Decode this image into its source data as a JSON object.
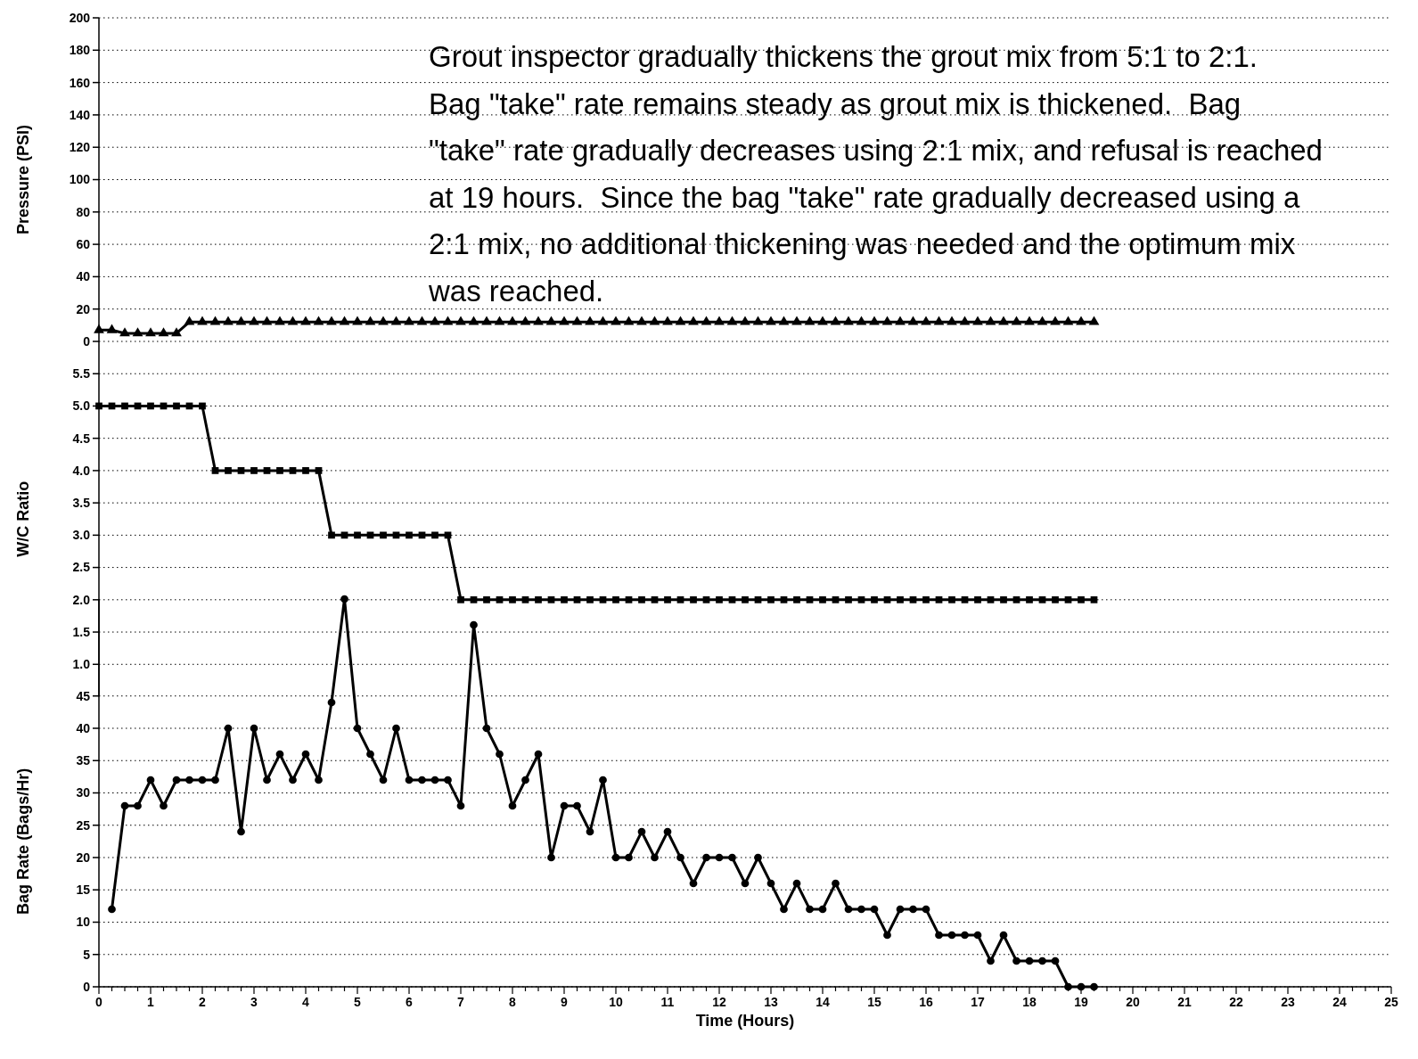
{
  "chart_data": [
    {
      "type": "line",
      "ylabel": "Pressure (PSI)",
      "xlim": [
        0,
        25
      ],
      "ylim": [
        0,
        200
      ],
      "yticks": [
        0,
        20,
        40,
        60,
        80,
        100,
        120,
        140,
        160,
        180,
        200
      ],
      "grid": "y",
      "marker": "triangle",
      "tick_labels": "y",
      "annotations": [
        "Grout inspector gradually thickens the grout mix from 5:1 to 2:1.  Bag \"take\" rate remains steady as grout mix is thickened.  Bag \"take\" rate gradually decreases using 2:1 mix, and refusal is reached at 19 hours.  Since the bag \"take\" rate gradually decreased using a 2:1 mix, no additional thickening was needed and the optimum mix was reached."
      ],
      "x": [
        0,
        0.25,
        0.5,
        0.75,
        1,
        1.25,
        1.5,
        1.75,
        2,
        2.25,
        2.5,
        2.75,
        3,
        3.25,
        3.5,
        3.75,
        4,
        4.25,
        4.5,
        4.75,
        5,
        5.25,
        5.5,
        5.75,
        6,
        6.25,
        6.5,
        6.75,
        7,
        7.25,
        7.5,
        7.75,
        8,
        8.25,
        8.5,
        8.75,
        9,
        9.25,
        9.5,
        9.75,
        10,
        10.25,
        10.5,
        10.75,
        11,
        11.25,
        11.5,
        11.75,
        12,
        12.25,
        12.5,
        12.75,
        13,
        13.25,
        13.5,
        13.75,
        14,
        14.25,
        14.5,
        14.75,
        15,
        15.25,
        15.5,
        15.75,
        16,
        16.25,
        16.5,
        16.75,
        17,
        17.25,
        17.5,
        17.75,
        18,
        18.25,
        18.5,
        18.75,
        19,
        19.25
      ],
      "series": [
        {
          "color": "#000000",
          "values": [
            7,
            7,
            5,
            5,
            5,
            5,
            5,
            12,
            12,
            12,
            12,
            12,
            12,
            12,
            12,
            12,
            12,
            12,
            12,
            12,
            12,
            12,
            12,
            12,
            12,
            12,
            12,
            12,
            12,
            12,
            12,
            12,
            12,
            12,
            12,
            12,
            12,
            12,
            12,
            12,
            12,
            12,
            12,
            12,
            12,
            12,
            12,
            12,
            12,
            12,
            12,
            12,
            12,
            12,
            12,
            12,
            12,
            12,
            12,
            12,
            12,
            12,
            12,
            12,
            12,
            12,
            12,
            12,
            12,
            12,
            12,
            12,
            12,
            12,
            12,
            12,
            12,
            12
          ]
        }
      ]
    },
    {
      "type": "line",
      "ylabel": "W/C Ratio",
      "xlim": [
        0,
        25
      ],
      "ylim": [
        0.5,
        6
      ],
      "yticks": [
        {
          "value": 1,
          "label": "1.0"
        },
        1.5,
        {
          "value": 2,
          "label": "2.0"
        },
        2.5,
        {
          "value": 3,
          "label": "3.0"
        },
        3.5,
        {
          "value": 4,
          "label": "4.0"
        },
        4.5,
        {
          "value": 5,
          "label": "5.0"
        },
        5.5
      ],
      "grid": "y",
      "marker": "square",
      "tick_labels": "y",
      "x": [
        0,
        0.25,
        0.5,
        0.75,
        1,
        1.25,
        1.5,
        1.75,
        2,
        2.25,
        2.5,
        2.75,
        3,
        3.25,
        3.5,
        3.75,
        4,
        4.25,
        4.5,
        4.75,
        5,
        5.25,
        5.5,
        5.75,
        6,
        6.25,
        6.5,
        6.75,
        7,
        7.25,
        7.5,
        7.75,
        8,
        8.25,
        8.5,
        8.75,
        9,
        9.25,
        9.5,
        9.75,
        10,
        10.25,
        10.5,
        10.75,
        11,
        11.25,
        11.5,
        11.75,
        12,
        12.25,
        12.5,
        12.75,
        13,
        13.25,
        13.5,
        13.75,
        14,
        14.25,
        14.5,
        14.75,
        15,
        15.25,
        15.5,
        15.75,
        16,
        16.25,
        16.5,
        16.75,
        17,
        17.25,
        17.5,
        17.75,
        18,
        18.25,
        18.5,
        18.75,
        19,
        19.25
      ],
      "series": [
        {
          "color": "#000000",
          "values": [
            5,
            5,
            5,
            5,
            5,
            5,
            5,
            5,
            5,
            4,
            4,
            4,
            4,
            4,
            4,
            4,
            4,
            4,
            3,
            3,
            3,
            3,
            3,
            3,
            3,
            3,
            3,
            3,
            2,
            2,
            2,
            2,
            2,
            2,
            2,
            2,
            2,
            2,
            2,
            2,
            2,
            2,
            2,
            2,
            2,
            2,
            2,
            2,
            2,
            2,
            2,
            2,
            2,
            2,
            2,
            2,
            2,
            2,
            2,
            2,
            2,
            2,
            2,
            2,
            2,
            2,
            2,
            2,
            2,
            2,
            2,
            2,
            2,
            2,
            2,
            2,
            2,
            2
          ]
        }
      ]
    },
    {
      "type": "line",
      "xlabel": "Time (Hours)",
      "ylabel": "Bag Rate (Bags/Hr)",
      "xlim": [
        0,
        25
      ],
      "ylim": [
        0,
        60
      ],
      "yticks": [
        0,
        5,
        10,
        15,
        20,
        25,
        30,
        35,
        40,
        45
      ],
      "grid": "y",
      "marker": "circle",
      "xticks": [
        0,
        {
          "value": 0.25,
          "label": null
        },
        {
          "value": 0.5,
          "label": null
        },
        {
          "value": 0.75,
          "label": null
        },
        1,
        {
          "value": 1.25,
          "label": null
        },
        {
          "value": 1.5,
          "label": null
        },
        {
          "value": 1.75,
          "label": null
        },
        2,
        {
          "value": 2.25,
          "label": null
        },
        {
          "value": 2.5,
          "label": null
        },
        {
          "value": 2.75,
          "label": null
        },
        3,
        {
          "value": 3.25,
          "label": null
        },
        {
          "value": 3.5,
          "label": null
        },
        {
          "value": 3.75,
          "label": null
        },
        4,
        {
          "value": 4.25,
          "label": null
        },
        {
          "value": 4.5,
          "label": null
        },
        {
          "value": 4.75,
          "label": null
        },
        5,
        {
          "value": 5.25,
          "label": null
        },
        {
          "value": 5.5,
          "label": null
        },
        {
          "value": 5.75,
          "label": null
        },
        6,
        {
          "value": 6.25,
          "label": null
        },
        {
          "value": 6.5,
          "label": null
        },
        {
          "value": 6.75,
          "label": null
        },
        7,
        {
          "value": 7.25,
          "label": null
        },
        {
          "value": 7.5,
          "label": null
        },
        {
          "value": 7.75,
          "label": null
        },
        8,
        {
          "value": 8.25,
          "label": null
        },
        {
          "value": 8.5,
          "label": null
        },
        {
          "value": 8.75,
          "label": null
        },
        9,
        {
          "value": 9.25,
          "label": null
        },
        {
          "value": 9.5,
          "label": null
        },
        {
          "value": 9.75,
          "label": null
        },
        10,
        {
          "value": 10.25,
          "label": null
        },
        {
          "value": 10.5,
          "label": null
        },
        {
          "value": 10.75,
          "label": null
        },
        11,
        {
          "value": 11.25,
          "label": null
        },
        {
          "value": 11.5,
          "label": null
        },
        {
          "value": 11.75,
          "label": null
        },
        12,
        {
          "value": 12.25,
          "label": null
        },
        {
          "value": 12.5,
          "label": null
        },
        {
          "value": 12.75,
          "label": null
        },
        13,
        {
          "value": 13.25,
          "label": null
        },
        {
          "value": 13.5,
          "label": null
        },
        {
          "value": 13.75,
          "label": null
        },
        14,
        {
          "value": 14.25,
          "label": null
        },
        {
          "value": 14.5,
          "label": null
        },
        {
          "value": 14.75,
          "label": null
        },
        15,
        {
          "value": 15.25,
          "label": null
        },
        {
          "value": 15.5,
          "label": null
        },
        {
          "value": 15.75,
          "label": null
        },
        16,
        {
          "value": 16.25,
          "label": null
        },
        {
          "value": 16.5,
          "label": null
        },
        {
          "value": 16.75,
          "label": null
        },
        17,
        {
          "value": 17.25,
          "label": null
        },
        {
          "value": 17.5,
          "label": null
        },
        {
          "value": 17.75,
          "label": null
        },
        18,
        {
          "value": 18.25,
          "label": null
        },
        {
          "value": 18.5,
          "label": null
        },
        {
          "value": 18.75,
          "label": null
        },
        19,
        {
          "value": 19.25,
          "label": null
        },
        {
          "value": 19.5,
          "label": null
        },
        {
          "value": 19.75,
          "label": null
        },
        20,
        {
          "value": 20.25,
          "label": null
        },
        {
          "value": 20.5,
          "label": null
        },
        {
          "value": 20.75,
          "label": null
        },
        21,
        {
          "value": 21.25,
          "label": null
        },
        {
          "value": 21.5,
          "label": null
        },
        {
          "value": 21.75,
          "label": null
        },
        22,
        {
          "value": 22.25,
          "label": null
        },
        {
          "value": 22.5,
          "label": null
        },
        {
          "value": 22.75,
          "label": null
        },
        23,
        {
          "value": 23.25,
          "label": null
        },
        {
          "value": 23.5,
          "label": null
        },
        {
          "value": 23.75,
          "label": null
        },
        24,
        {
          "value": 24.25,
          "label": null
        },
        {
          "value": 24.5,
          "label": null
        },
        {
          "value": 24.75,
          "label": null
        },
        25
      ],
      "x": [
        0.25,
        0.5,
        0.75,
        1,
        1.25,
        1.5,
        1.75,
        2,
        2.25,
        2.5,
        2.75,
        3,
        3.25,
        3.5,
        3.75,
        4,
        4.25,
        4.5,
        4.75,
        5,
        5.25,
        5.5,
        5.75,
        6,
        6.25,
        6.5,
        6.75,
        7,
        7.25,
        7.5,
        7.75,
        8,
        8.25,
        8.5,
        8.75,
        9,
        9.25,
        9.5,
        9.75,
        10,
        10.25,
        10.5,
        10.75,
        11,
        11.25,
        11.5,
        11.75,
        12,
        12.25,
        12.5,
        12.75,
        13,
        13.25,
        13.5,
        13.75,
        14,
        14.25,
        14.5,
        14.75,
        15,
        15.25,
        15.5,
        15.75,
        16,
        16.25,
        16.5,
        16.75,
        17,
        17.25,
        17.5,
        17.75,
        18,
        18.25,
        18.5,
        18.75,
        19,
        19.25
      ],
      "series": [
        {
          "color": "#000000",
          "values": [
            12,
            28,
            28,
            32,
            28,
            32,
            32,
            32,
            32,
            40,
            24,
            40,
            32,
            36,
            32,
            36,
            32,
            44,
            60,
            40,
            36,
            32,
            40,
            32,
            32,
            32,
            32,
            28,
            56,
            40,
            36,
            28,
            32,
            36,
            20,
            28,
            28,
            24,
            32,
            20,
            20,
            24,
            20,
            24,
            20,
            16,
            20,
            20,
            20,
            16,
            20,
            16,
            12,
            16,
            12,
            12,
            16,
            12,
            12,
            12,
            8,
            12,
            12,
            12,
            8,
            8,
            8,
            8,
            4,
            8,
            4,
            4,
            4,
            4,
            0,
            0,
            0
          ]
        }
      ]
    }
  ]
}
